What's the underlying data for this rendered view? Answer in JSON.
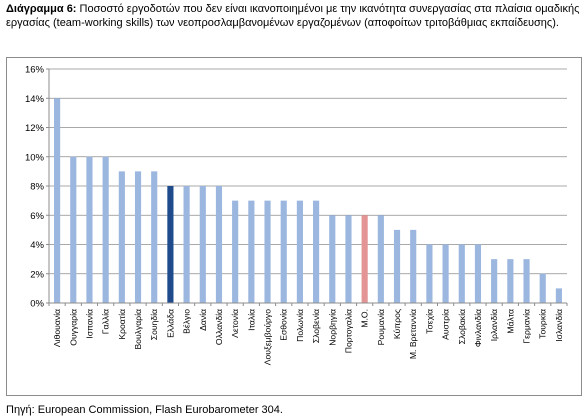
{
  "caption": {
    "label": "Διάγραμμα 6:",
    "text": "Ποσοστό εργοδοτών που δεν είναι ικανοποιημένοι με την ικανότητα συνεργασίας στα πλαίσια ομαδικής εργασίας (team-working skills) των νεοπροσλαμβανομένων εργαζομένων (αποφοίτων τριτοβάθμιας εκπαίδευσης)."
  },
  "source": "Πηγή: European Commission, Flash Eurobarometer 304.",
  "colors": {
    "default_bar": "#9bb7e0",
    "greece_bar": "#1f4a8c",
    "average_bar": "#e39595",
    "grid": "#8c8c8c",
    "axis": "#8c8c8c"
  },
  "chart_data": {
    "type": "bar",
    "title": "",
    "xlabel": "",
    "ylabel": "",
    "ylim": [
      0,
      16
    ],
    "ytick_values": [
      0,
      2,
      4,
      6,
      8,
      10,
      12,
      14,
      16
    ],
    "ytick_labels": [
      "0%",
      "2%",
      "4%",
      "6%",
      "8%",
      "10%",
      "12%",
      "14%",
      "16%"
    ],
    "grid": true,
    "legend": "none",
    "categories": [
      "Λιθουανία",
      "Ουγγαρία",
      "Ισπανία",
      "Γαλλία",
      "Κροατία",
      "Βουλγαρία",
      "Σουηδία",
      "Ελλάδα",
      "Βέλγιο",
      "Δανία",
      "Ολλανδία",
      "Λετονία",
      "Ιταλία",
      "Λουξεμβούργο",
      "Εσθονία",
      "Πολωνία",
      "Σλοβενία",
      "Νορβηγία",
      "Πορτογαλία",
      "Μ.Ο.",
      "Ρουμανία",
      "Κύπρος",
      "Μ. Βρεταννία",
      "Τσεχία",
      "Αυστρία",
      "Σλοβακία",
      "Φινλανδία",
      "Ιρλανδία",
      "Μάλτα",
      "Γερμανία",
      "Τουρκία",
      "Ισλανδία"
    ],
    "values": [
      14,
      10,
      10,
      10,
      9,
      9,
      9,
      8,
      8,
      8,
      8,
      7,
      7,
      7,
      7,
      7,
      7,
      6,
      6,
      6,
      6,
      5,
      5,
      4,
      4,
      4,
      4,
      3,
      3,
      3,
      2,
      1
    ],
    "highlight": {
      "Ελλάδα": "greece_bar",
      "Μ.Ο.": "average_bar"
    }
  }
}
